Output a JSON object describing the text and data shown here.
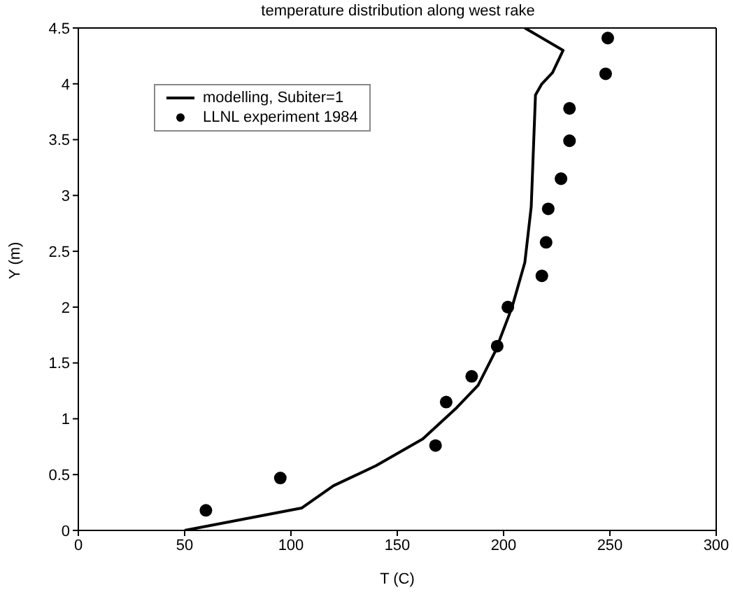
{
  "chart_data": {
    "type": "line",
    "title": "temperature distribution along west rake",
    "xlabel": "T (C)",
    "ylabel": "Y (m)",
    "xlim": [
      0,
      300
    ],
    "xticks": [
      0,
      50,
      100,
      150,
      200,
      250,
      300
    ],
    "ylim": [
      0,
      4.5
    ],
    "yticks": [
      0,
      0.5,
      1,
      1.5,
      2,
      2.5,
      3,
      3.5,
      4,
      4.5
    ],
    "legend": "top left",
    "series": [
      {
        "name": "modelling, Subiter=1",
        "type": "line",
        "color": "#000000",
        "marker": "none",
        "line_style": "solid",
        "x": [
          50,
          105,
          120,
          140,
          162,
          178,
          188,
          196,
          204,
          210,
          213,
          214,
          215,
          218,
          223,
          228,
          210
        ],
        "values": [
          0,
          0.2,
          0.4,
          0.58,
          0.82,
          1.1,
          1.3,
          1.6,
          2.0,
          2.4,
          2.9,
          3.4,
          3.9,
          4.0,
          4.1,
          4.3,
          4.5
        ]
      },
      {
        "name": "LLNL experiment 1984",
        "type": "scatter",
        "color": "#000000",
        "marker": "circle",
        "x": [
          60,
          95,
          168,
          173,
          185,
          197,
          202,
          218,
          220,
          221,
          227,
          231,
          231,
          248,
          249
        ],
        "values": [
          0.18,
          0.47,
          0.76,
          1.15,
          1.38,
          1.65,
          2.0,
          2.28,
          2.58,
          2.88,
          3.15,
          3.49,
          3.78,
          4.09,
          4.41
        ]
      }
    ]
  }
}
